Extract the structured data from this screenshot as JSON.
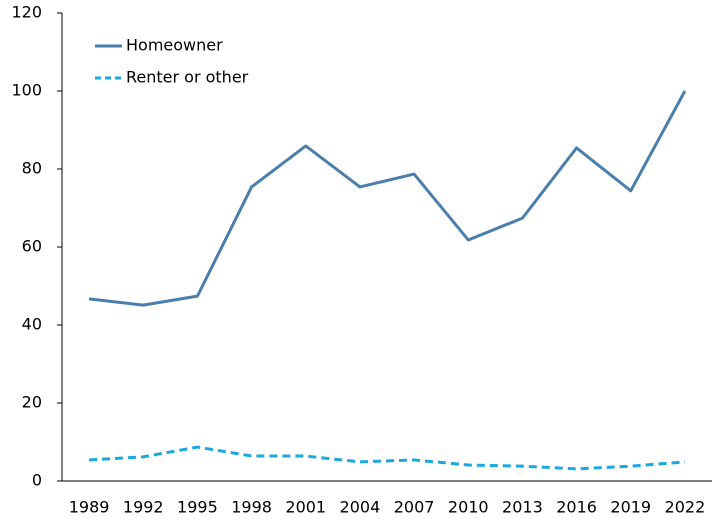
{
  "chart_data": {
    "type": "line",
    "categories": [
      "1989",
      "1992",
      "1995",
      "1998",
      "2001",
      "2004",
      "2007",
      "2010",
      "2013",
      "2016",
      "2019",
      "2022"
    ],
    "series": [
      {
        "name": "Homeowner",
        "color": "#4a7fab",
        "line_style": "solid",
        "values": [
          46.7,
          45.1,
          47.4,
          75.4,
          85.9,
          75.4,
          78.7,
          61.8,
          67.4,
          85.4,
          74.4,
          100
        ]
      },
      {
        "name": "Renter or other",
        "color": "#1ba7e0",
        "line_style": "dashed",
        "values": [
          5.4,
          6.2,
          8.7,
          6.4,
          6.4,
          4.9,
          5.4,
          4.1,
          3.8,
          3.1,
          3.8,
          4.9
        ]
      }
    ],
    "ylim": [
      0,
      120
    ],
    "yticks": [
      0,
      20,
      40,
      60,
      80,
      100,
      120
    ],
    "grid": false,
    "legend": "top-left"
  }
}
